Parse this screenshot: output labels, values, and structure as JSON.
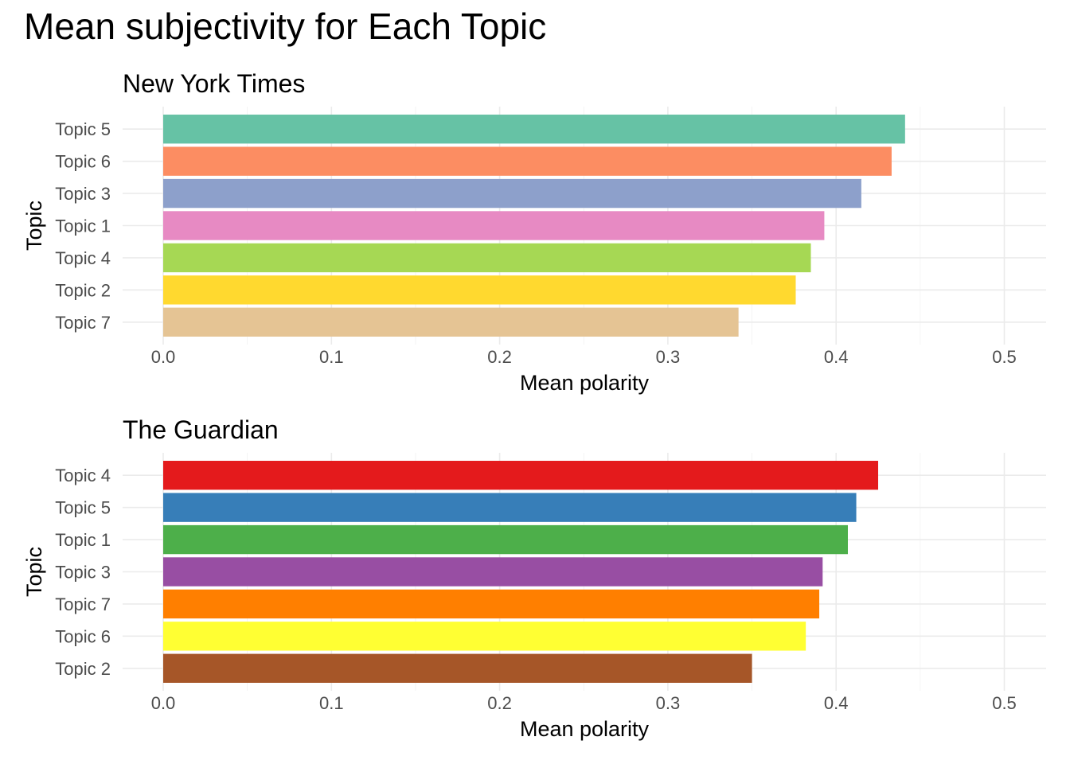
{
  "title": "Mean subjectivity for Each Topic",
  "chart_data": [
    {
      "type": "bar",
      "orientation": "horizontal",
      "title": "New York Times",
      "xlabel": "Mean polarity",
      "ylabel": "Topic",
      "xlim": [
        0,
        0.52
      ],
      "xticks": [
        "0.0",
        "0.1",
        "0.2",
        "0.3",
        "0.4",
        "0.5"
      ],
      "grid": true,
      "categories": [
        "Topic 5",
        "Topic 6",
        "Topic 3",
        "Topic 1",
        "Topic 4",
        "Topic 2",
        "Topic 7"
      ],
      "values": [
        0.441,
        0.433,
        0.415,
        0.393,
        0.385,
        0.376,
        0.342
      ],
      "colors": [
        "#66c2a5",
        "#fc8d62",
        "#8da0cb",
        "#e78ac3",
        "#a6d854",
        "#ffd92f",
        "#e5c494"
      ]
    },
    {
      "type": "bar",
      "orientation": "horizontal",
      "title": "The Guardian",
      "xlabel": "Mean polarity",
      "ylabel": "Topic",
      "xlim": [
        0,
        0.52
      ],
      "xticks": [
        "0.0",
        "0.1",
        "0.2",
        "0.3",
        "0.4",
        "0.5"
      ],
      "grid": true,
      "categories": [
        "Topic 4",
        "Topic 5",
        "Topic 1",
        "Topic 3",
        "Topic 7",
        "Topic 6",
        "Topic 2"
      ],
      "values": [
        0.425,
        0.412,
        0.407,
        0.392,
        0.39,
        0.382,
        0.35
      ],
      "colors": [
        "#e41a1c",
        "#377eb8",
        "#4daf4a",
        "#984ea3",
        "#ff7f00",
        "#ffff33",
        "#a65628"
      ]
    }
  ]
}
